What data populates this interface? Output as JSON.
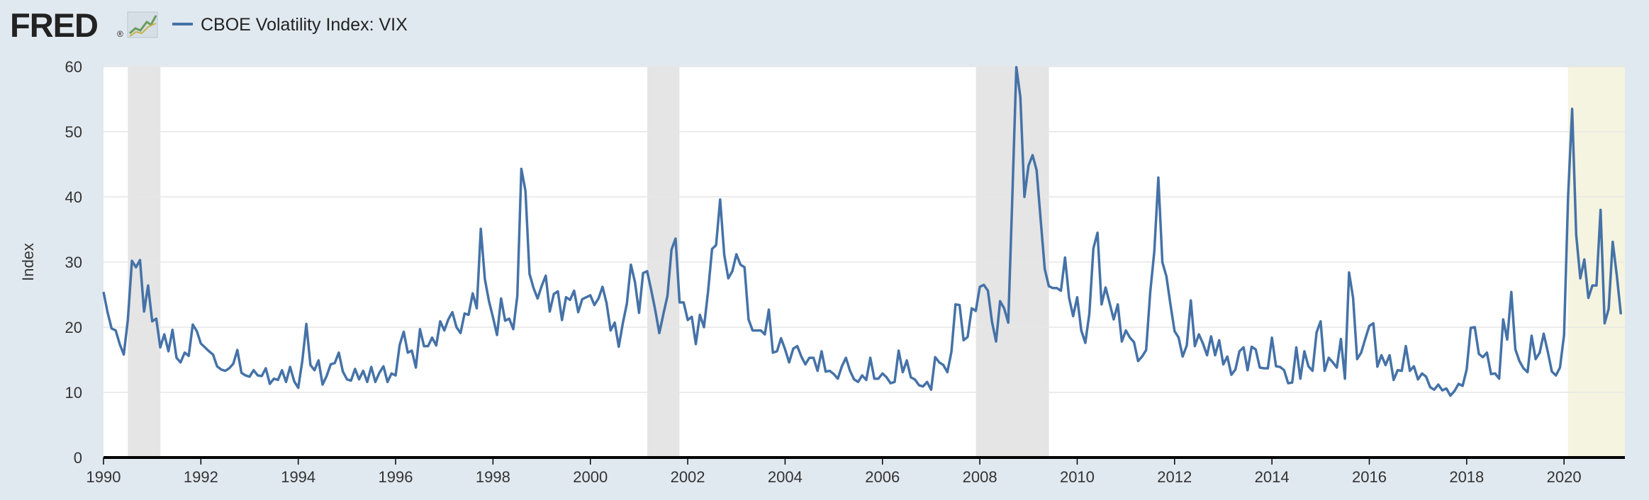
{
  "header": {
    "logo_text": "FRED",
    "logo_mark": "®",
    "legend_label": "CBOE Volatility Index: VIX",
    "legend_icon": "chart-line-icon"
  },
  "colors": {
    "background": "#e1e9f0",
    "plot_background": "#ffffff",
    "series": "#4572a7",
    "recession": "#e5e5e5",
    "highlight": "#f5f4e0",
    "grid": "#e6e6e6",
    "axis": "#000000",
    "logo": "#222222"
  },
  "chart_data": {
    "type": "line",
    "title": "",
    "ylabel": "Index",
    "xlabel": "",
    "ylim": [
      0,
      60
    ],
    "xlim": [
      1990.0,
      2021.25
    ],
    "yticks": [
      "0",
      "10",
      "20",
      "30",
      "40",
      "50",
      "60"
    ],
    "xticks": [
      "1990",
      "1992",
      "1994",
      "1996",
      "1998",
      "2000",
      "2002",
      "2004",
      "2006",
      "2008",
      "2010",
      "2012",
      "2014",
      "2016",
      "2018",
      "2020"
    ],
    "grid": true,
    "legend": "top-left",
    "shaded_periods": [
      {
        "start": 1990.5,
        "end": 1991.17,
        "kind": "recession"
      },
      {
        "start": 2001.17,
        "end": 2001.83,
        "kind": "recession"
      },
      {
        "start": 2007.92,
        "end": 2009.42,
        "kind": "recession"
      },
      {
        "start": 2020.08,
        "end": 2021.25,
        "kind": "highlight"
      }
    ],
    "series": [
      {
        "name": "CBOE Volatility Index: VIX",
        "start_year": 1990,
        "start_month": 1,
        "frequency": "monthly",
        "values": [
          25.4,
          22.3,
          19.8,
          19.5,
          17.4,
          15.8,
          21.1,
          30.2,
          29.2,
          30.3,
          22.4,
          26.4,
          20.9,
          21.3,
          16.9,
          18.9,
          16.3,
          19.6,
          15.3,
          14.6,
          16.1,
          15.6,
          20.4,
          19.4,
          17.5,
          16.9,
          16.3,
          15.8,
          14.0,
          13.5,
          13.3,
          13.7,
          14.4,
          16.5,
          13.0,
          12.6,
          12.4,
          13.4,
          12.6,
          12.5,
          13.7,
          11.3,
          12.1,
          11.9,
          13.4,
          11.6,
          13.9,
          11.7,
          10.7,
          14.8,
          20.5,
          14.2,
          13.4,
          14.9,
          11.2,
          12.5,
          14.3,
          14.5,
          16.1,
          13.2,
          12.0,
          11.8,
          13.6,
          12.0,
          13.3,
          11.6,
          13.9,
          11.6,
          13.0,
          14.0,
          11.6,
          12.9,
          12.6,
          17.3,
          19.3,
          16.1,
          16.4,
          13.8,
          19.7,
          17.1,
          17.1,
          18.4,
          17.2,
          20.9,
          19.5,
          21.2,
          22.3,
          20.0,
          19.1,
          22.1,
          21.9,
          25.2,
          22.9,
          35.1,
          27.4,
          24.0,
          21.5,
          18.8,
          24.4,
          21.0,
          21.3,
          19.7,
          24.8,
          44.3,
          40.9,
          28.2,
          26.0,
          24.4,
          26.3,
          27.9,
          22.4,
          25.1,
          25.5,
          21.1,
          24.6,
          24.2,
          25.6,
          22.3,
          24.3,
          24.6,
          24.9,
          23.4,
          24.4,
          26.2,
          23.7,
          19.5,
          20.7,
          17.0,
          20.6,
          23.6,
          29.6,
          26.9,
          22.2,
          28.3,
          28.6,
          25.7,
          22.6,
          19.1,
          22.0,
          24.8,
          31.9,
          33.6,
          23.8,
          23.8,
          21.1,
          21.6,
          17.4,
          21.9,
          20.0,
          25.4,
          32.0,
          32.6,
          39.6,
          31.1,
          27.5,
          28.6,
          31.2,
          29.6,
          29.2,
          21.2,
          19.5,
          19.5,
          19.5,
          18.9,
          22.7,
          16.1,
          16.3,
          18.3,
          16.6,
          14.6,
          16.7,
          17.1,
          15.5,
          14.3,
          15.3,
          15.3,
          13.3,
          16.3,
          13.2,
          13.3,
          12.8,
          12.1,
          14.0,
          15.3,
          13.3,
          12.0,
          11.6,
          12.6,
          11.9,
          15.3,
          12.1,
          12.1,
          12.9,
          12.3,
          11.4,
          11.6,
          16.4,
          13.1,
          14.9,
          12.3,
          11.98,
          11.1,
          10.9,
          11.6,
          10.4,
          15.4,
          14.6,
          14.2,
          13.1,
          16.2,
          23.5,
          23.4,
          18.0,
          18.5,
          22.9,
          22.5,
          26.2,
          26.5,
          25.6,
          20.8,
          17.8,
          24.0,
          22.9,
          20.7,
          39.8,
          59.9,
          55.3,
          40.0,
          44.8,
          46.4,
          44.1,
          36.5,
          28.9,
          26.3,
          26.0,
          26.0,
          25.6,
          30.7,
          24.5,
          21.7,
          24.6,
          19.5,
          17.6,
          22.1,
          32.1,
          34.5,
          23.5,
          26.1,
          23.7,
          21.2,
          23.5,
          17.8,
          19.5,
          18.4,
          17.7,
          14.8,
          15.5,
          16.5,
          25.3,
          31.6,
          42.96,
          29.96,
          27.8,
          23.4,
          19.4,
          18.4,
          15.5,
          17.2,
          24.1,
          17.1,
          18.9,
          17.5,
          15.7,
          18.6,
          15.7,
          18.0,
          14.3,
          15.5,
          12.7,
          13.5,
          16.3,
          16.9,
          13.4,
          17.0,
          16.6,
          13.8,
          13.7,
          13.7,
          18.4,
          14.0,
          13.9,
          13.4,
          11.4,
          11.5,
          16.9,
          12.1,
          16.3,
          14.0,
          13.3,
          19.2,
          20.9,
          13.3,
          15.3,
          14.6,
          13.8,
          18.2,
          12.1,
          28.4,
          24.5,
          15.1,
          16.1,
          18.2,
          20.2,
          20.6,
          13.95,
          15.7,
          14.2,
          15.7,
          11.9,
          13.4,
          13.3,
          17.1,
          13.3,
          14.0,
          11.99,
          12.9,
          12.4,
          10.8,
          10.4,
          11.2,
          10.3,
          10.6,
          9.5,
          10.2,
          11.3,
          11.0,
          13.5,
          19.9,
          20.0,
          15.9,
          15.4,
          16.1,
          12.8,
          12.9,
          12.1,
          21.2,
          18.1,
          25.4,
          16.6,
          14.8,
          13.7,
          13.1,
          18.7,
          15.1,
          16.1,
          19.0,
          16.2,
          13.2,
          12.6,
          13.8,
          18.8,
          40.1,
          53.5,
          34.2,
          27.5,
          30.4,
          24.5,
          26.4,
          26.4,
          38.0,
          20.6,
          22.8,
          33.1,
          27.95,
          22.0
        ]
      }
    ]
  }
}
